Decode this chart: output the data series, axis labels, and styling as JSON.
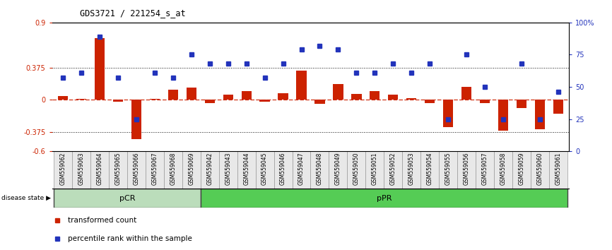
{
  "title": "GDS3721 / 221254_s_at",
  "samples": [
    "GSM559062",
    "GSM559063",
    "GSM559064",
    "GSM559065",
    "GSM559066",
    "GSM559067",
    "GSM559068",
    "GSM559069",
    "GSM559042",
    "GSM559043",
    "GSM559044",
    "GSM559045",
    "GSM559046",
    "GSM559047",
    "GSM559048",
    "GSM559049",
    "GSM559050",
    "GSM559051",
    "GSM559052",
    "GSM559053",
    "GSM559054",
    "GSM559055",
    "GSM559056",
    "GSM559057",
    "GSM559058",
    "GSM559059",
    "GSM559060",
    "GSM559061"
  ],
  "transformed_count": [
    0.04,
    0.01,
    0.72,
    -0.02,
    -0.46,
    0.01,
    0.12,
    0.14,
    -0.04,
    0.06,
    0.1,
    -0.02,
    0.08,
    0.34,
    -0.05,
    0.18,
    0.07,
    0.1,
    0.06,
    0.02,
    -0.04,
    -0.32,
    0.15,
    -0.04,
    -0.36,
    -0.1,
    -0.34,
    -0.16
  ],
  "percentile_rank": [
    57,
    61,
    89,
    57,
    25,
    61,
    57,
    75,
    68,
    68,
    68,
    57,
    68,
    79,
    82,
    79,
    61,
    61,
    68,
    61,
    68,
    25,
    75,
    50,
    25,
    68,
    25,
    46
  ],
  "pCR_count": 8,
  "pPR_count": 20,
  "ylim_left": [
    -0.6,
    0.9
  ],
  "ylim_right": [
    0,
    100
  ],
  "yticks_left": [
    -0.6,
    -0.375,
    0.0,
    0.375,
    0.9
  ],
  "yticks_right": [
    0,
    25,
    50,
    75,
    100
  ],
  "hline_vals": [
    0.375,
    -0.375
  ],
  "bar_color": "#cc2200",
  "dot_color": "#2233bb",
  "zero_line_color": "#cc2200",
  "hline_color": "#111111",
  "pCR_color": "#bbddbb",
  "pPR_color": "#55cc55",
  "label_color_left": "#cc2200",
  "label_color_right": "#2233bb",
  "background_color": "#ffffff",
  "right_tick_labels": [
    "0",
    "25",
    "50",
    "75",
    "100%"
  ]
}
